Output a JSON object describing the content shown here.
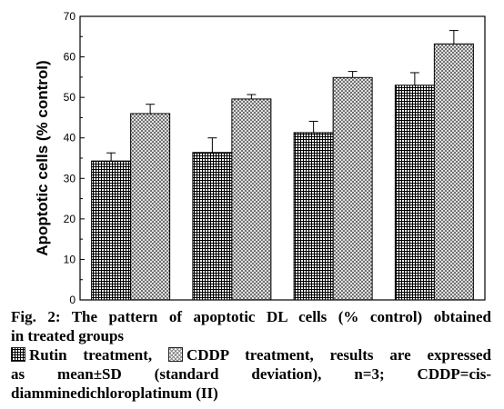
{
  "chart_data": {
    "type": "bar",
    "ylabel": "Apoptotic cells (% control)",
    "ylim": [
      0,
      70
    ],
    "yticks": [
      0,
      10,
      20,
      30,
      40,
      50,
      60,
      70
    ],
    "categories": [
      "",
      "",
      "",
      ""
    ],
    "series": [
      {
        "name": "Rutin treatment",
        "values": [
          34.3,
          36.4,
          41.3,
          53.0
        ],
        "errors": [
          2.0,
          3.6,
          2.8,
          3.1
        ],
        "pattern": "grid",
        "color": "#000000"
      },
      {
        "name": "CDDP treatment",
        "values": [
          46.0,
          49.6,
          54.9,
          63.2
        ],
        "errors": [
          2.3,
          1.1,
          1.5,
          3.3
        ],
        "pattern": "diagonal-crosshatch",
        "color": "#000000"
      }
    ],
    "grid": false,
    "legend": "caption"
  },
  "caption": {
    "fig_label": "Fig. 2:",
    "title_line1": " The pattern of apoptotic DL cells (% control) obtained",
    "title_line2": "in treated groups",
    "legend_rutin": "Rutin treatment,",
    "legend_cddp": "CDDP treatment, results are expressed",
    "line4": "as mean±SD (standard deviation), n=3; CDDP=cis-",
    "line5": "diamminedichloroplatinum (II)"
  }
}
